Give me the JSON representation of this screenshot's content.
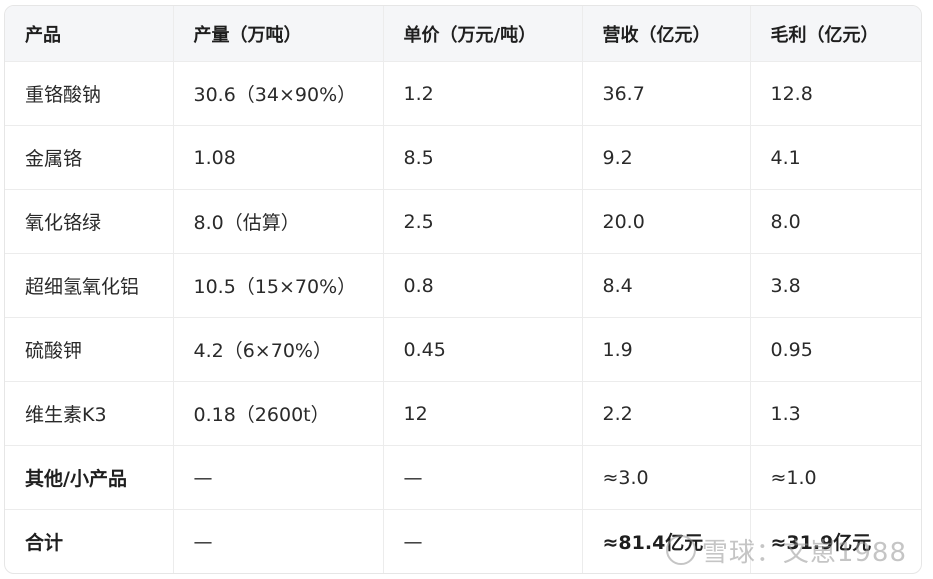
{
  "table": {
    "headers": [
      "产品",
      "产量（万吨）",
      "单价（万元/吨）",
      "营收（亿元）",
      "毛利（亿元）"
    ],
    "rows": [
      [
        "重铬酸钠",
        "30.6（34×90%）",
        "1.2",
        "36.7",
        "12.8"
      ],
      [
        "金属铬",
        "1.08",
        "8.5",
        "9.2",
        "4.1"
      ],
      [
        "氧化铬绿",
        "8.0（估算）",
        "2.5",
        "20.0",
        "8.0"
      ],
      [
        "超细氢氧化铝",
        "10.5（15×70%）",
        "0.8",
        "8.4",
        "3.8"
      ],
      [
        "硫酸钾",
        "4.2（6×70%）",
        "0.45",
        "1.9",
        "0.95"
      ],
      [
        "维生素K3",
        "0.18（2600t）",
        "12",
        "2.2",
        "1.3"
      ],
      [
        "其他/小产品",
        "—",
        "—",
        "≈3.0",
        "≈1.0"
      ],
      [
        "合计",
        "—",
        "—",
        "≈81.4亿元",
        "≈31.9亿元"
      ]
    ]
  },
  "watermark": {
    "text": "雪球：文崽1988",
    "icon": "snowball-logo-icon"
  }
}
